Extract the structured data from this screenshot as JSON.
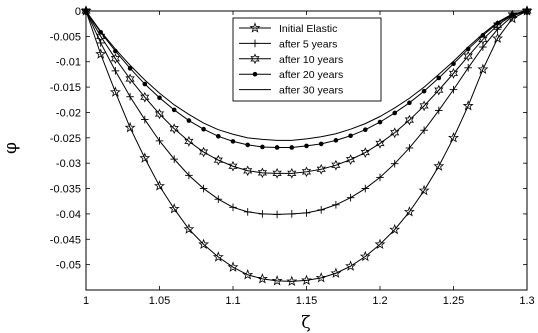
{
  "chart_data": {
    "type": "line",
    "title": "",
    "xlabel": "ζ",
    "ylabel": "φ",
    "xlim": [
      1,
      1.3
    ],
    "ylim": [
      -0.055,
      0
    ],
    "grid": false,
    "legend_position": "top-right",
    "x_ticks": [
      "1",
      "1.05",
      "1.1",
      "1.15",
      "1.2",
      "1.25",
      "1.3"
    ],
    "y_ticks": [
      "0",
      "-0.005",
      "-0.01",
      "-0.015",
      "-0.02",
      "-0.025",
      "-0.03",
      "-0.035",
      "-0.04",
      "-0.045",
      "-0.05"
    ],
    "x": [
      1.0,
      1.01,
      1.02,
      1.03,
      1.04,
      1.05,
      1.06,
      1.07,
      1.08,
      1.09,
      1.1,
      1.11,
      1.12,
      1.13,
      1.14,
      1.15,
      1.16,
      1.17,
      1.18,
      1.19,
      1.2,
      1.21,
      1.22,
      1.23,
      1.24,
      1.25,
      1.26,
      1.27,
      1.28,
      1.29,
      1.3
    ],
    "series": [
      {
        "name": "Initial Elastic",
        "marker": "star",
        "values": [
          0,
          -0.0085,
          -0.016,
          -0.023,
          -0.029,
          -0.0345,
          -0.039,
          -0.043,
          -0.046,
          -0.0485,
          -0.0505,
          -0.052,
          -0.0528,
          -0.0532,
          -0.0533,
          -0.0531,
          -0.0526,
          -0.0517,
          -0.0503,
          -0.0484,
          -0.046,
          -0.0431,
          -0.0396,
          -0.0354,
          -0.0306,
          -0.025,
          -0.0187,
          -0.0115,
          -0.0054,
          -0.0015,
          0
        ]
      },
      {
        "name": "after 5 years",
        "marker": "plus",
        "values": [
          0,
          -0.0063,
          -0.0118,
          -0.0169,
          -0.0214,
          -0.0256,
          -0.0292,
          -0.0324,
          -0.035,
          -0.0371,
          -0.0387,
          -0.0396,
          -0.04,
          -0.0401,
          -0.04,
          -0.0398,
          -0.0392,
          -0.0382,
          -0.0368,
          -0.035,
          -0.0328,
          -0.0301,
          -0.027,
          -0.0235,
          -0.0196,
          -0.0155,
          -0.0112,
          -0.0071,
          -0.0036,
          -0.001,
          0
        ]
      },
      {
        "name": "after 10 years",
        "marker": "hexstar",
        "values": [
          0,
          -0.005,
          -0.0094,
          -0.0134,
          -0.017,
          -0.0203,
          -0.0232,
          -0.0257,
          -0.0278,
          -0.0294,
          -0.0306,
          -0.0315,
          -0.0319,
          -0.032,
          -0.032,
          -0.0317,
          -0.0312,
          -0.0304,
          -0.0293,
          -0.0279,
          -0.0261,
          -0.024,
          -0.0215,
          -0.0187,
          -0.0156,
          -0.0123,
          -0.0089,
          -0.0056,
          -0.0028,
          -0.0008,
          0
        ]
      },
      {
        "name": "after 20 years",
        "marker": "dot",
        "values": [
          0,
          -0.0042,
          -0.0079,
          -0.0113,
          -0.0144,
          -0.0171,
          -0.0195,
          -0.0216,
          -0.0233,
          -0.0247,
          -0.0257,
          -0.0264,
          -0.0268,
          -0.0269,
          -0.0269,
          -0.0266,
          -0.0262,
          -0.0255,
          -0.0246,
          -0.0234,
          -0.0219,
          -0.0201,
          -0.0181,
          -0.0158,
          -0.0132,
          -0.0104,
          -0.0075,
          -0.0048,
          -0.0024,
          -0.0007,
          0
        ]
      },
      {
        "name": "after 30 years",
        "marker": "none",
        "values": [
          0,
          -0.004,
          -0.0075,
          -0.0107,
          -0.0136,
          -0.0162,
          -0.0185,
          -0.0204,
          -0.0221,
          -0.0234,
          -0.0243,
          -0.025,
          -0.0253,
          -0.0255,
          -0.0255,
          -0.0252,
          -0.0248,
          -0.0242,
          -0.0233,
          -0.0222,
          -0.0208,
          -0.0191,
          -0.0172,
          -0.015,
          -0.0125,
          -0.0099,
          -0.0071,
          -0.0045,
          -0.0022,
          -0.0006,
          0
        ]
      }
    ]
  }
}
